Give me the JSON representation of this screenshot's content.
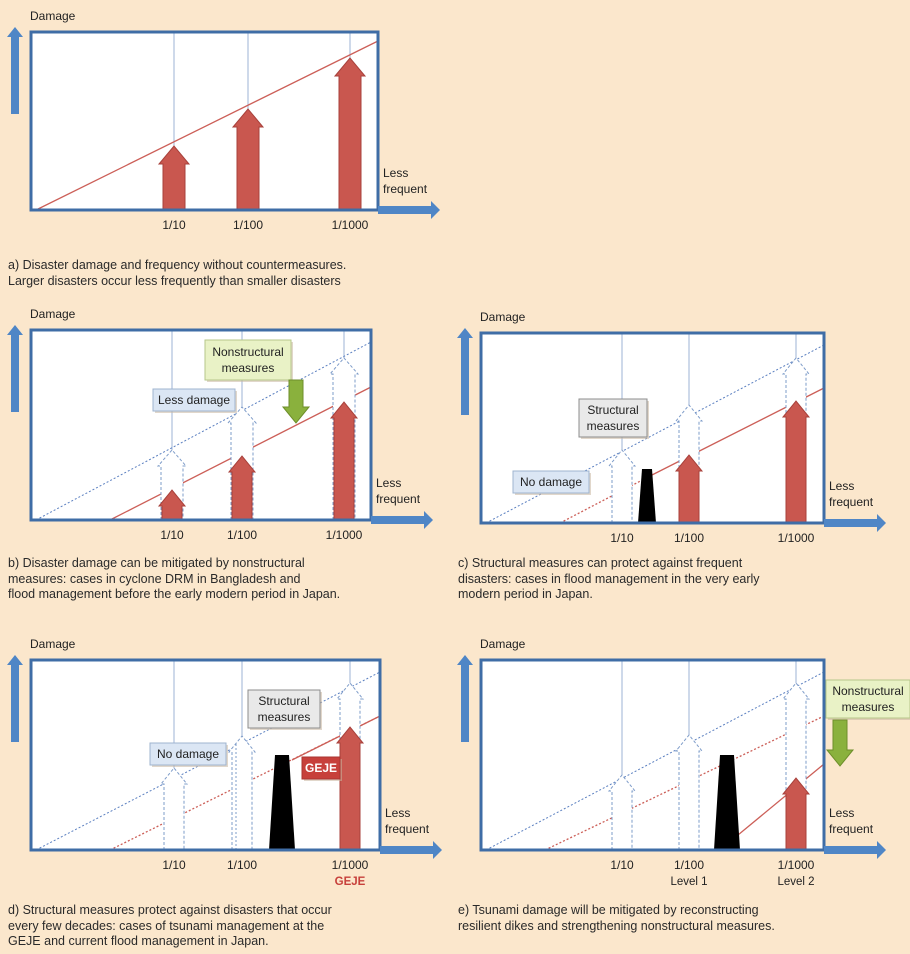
{
  "colors": {
    "background": "#fbe7cc",
    "frame": "#3f6da6",
    "frame_arrow": "#4f86c6",
    "damage_arrow": "#c9574f",
    "damage_line": "#cc5f58",
    "threshold_line": "#5a7fc0",
    "label_blue": "#dbe6f4",
    "label_green": "#e9f2c6",
    "nonstructural_arrow": "#8ab13d",
    "structure": "#000000",
    "geje_label": "#c7403b"
  },
  "common": {
    "y_axis_label": "Damage",
    "x_axis_label_line1": "Less",
    "x_axis_label_line2": "frequent"
  },
  "panels": [
    {
      "id": "a",
      "ticks": [
        {
          "label": "1/10",
          "sublabel": ""
        },
        {
          "label": "1/100",
          "sublabel": ""
        },
        {
          "label": "1/1000",
          "sublabel": ""
        }
      ],
      "caption": "a) Disaster damage and frequency without countermeasures.\nLarger disasters occur less frequently than smaller disasters"
    },
    {
      "id": "b",
      "ticks": [
        {
          "label": "1/10",
          "sublabel": ""
        },
        {
          "label": "1/100",
          "sublabel": ""
        },
        {
          "label": "1/1000",
          "sublabel": ""
        }
      ],
      "callouts": {
        "less_damage": "Less damage",
        "nonstructural_1": "Nonstructural",
        "nonstructural_2": "measures"
      },
      "caption": "b) Disaster damage can be mitigated by nonstructural\nmeasures: cases in cyclone DRM in Bangladesh and\nflood management before the early modern period in Japan."
    },
    {
      "id": "c",
      "ticks": [
        {
          "label": "1/10",
          "sublabel": ""
        },
        {
          "label": "1/100",
          "sublabel": ""
        },
        {
          "label": "1/1000",
          "sublabel": ""
        }
      ],
      "callouts": {
        "structural_1": "Structural",
        "structural_2": "measures",
        "no_damage": "No damage"
      },
      "caption": "c) Structural measures can protect against frequent\ndisasters: cases in flood management in the very early\nmodern period in Japan."
    },
    {
      "id": "d",
      "ticks": [
        {
          "label": "1/10",
          "sublabel": ""
        },
        {
          "label": "1/100",
          "sublabel": ""
        },
        {
          "label": "1/1000",
          "sublabel": "GEJE"
        }
      ],
      "callouts": {
        "structural_1": "Structural",
        "structural_2": "measures",
        "no_damage": "No damage",
        "geje": "GEJE"
      },
      "caption": "d) Structural measures protect against disasters that occur\nevery few decades: cases of tsunami management at the\nGEJE and current flood management in Japan."
    },
    {
      "id": "e",
      "ticks": [
        {
          "label": "1/10",
          "sublabel": ""
        },
        {
          "label": "1/100",
          "sublabel": "Level 1"
        },
        {
          "label": "1/1000",
          "sublabel": "Level 2"
        }
      ],
      "callouts": {
        "nonstructural_1": "Nonstructural",
        "nonstructural_2": "measures"
      },
      "caption": "e) Tsunami damage will be mitigated by reconstructing\nresilient dikes and strengthening nonstructural measures."
    }
  ]
}
